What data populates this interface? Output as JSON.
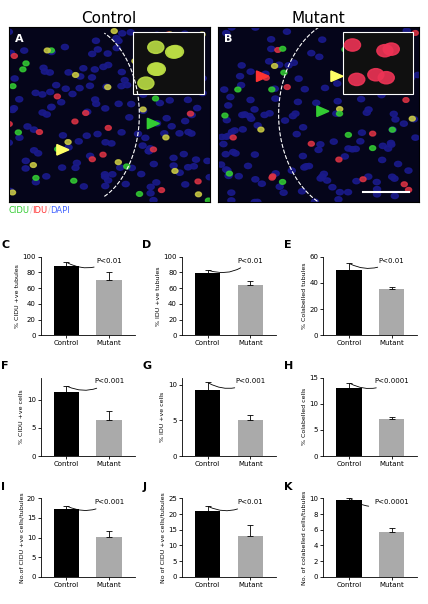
{
  "images": [
    {
      "panel": "A",
      "title": "Control"
    },
    {
      "panel": "B",
      "title": "Mutant"
    }
  ],
  "stain_legend": [
    {
      "text": "CIDU",
      "color": "#33cc33"
    },
    {
      "text": "/",
      "color": "#cccccc"
    },
    {
      "text": "IDU",
      "color": "#ff3333"
    },
    {
      "text": "/",
      "color": "#cccccc"
    },
    {
      "text": "DAPI",
      "color": "#4466ff"
    }
  ],
  "chart_data": [
    {
      "type": "bar",
      "panel": "C",
      "y_label": "% CIDU +ve tubules",
      "categories": [
        "Control",
        "Mutant"
      ],
      "values": [
        88,
        70
      ],
      "errors": [
        5,
        10
      ],
      "colors": [
        "#000000",
        "#aaaaaa"
      ],
      "ylim": [
        0,
        100
      ],
      "yticks": [
        0,
        20,
        40,
        60,
        80,
        100
      ],
      "annotation": "P<0.01"
    },
    {
      "type": "bar",
      "panel": "D",
      "y_label": "% IDU +ve tubules",
      "categories": [
        "Control",
        "Mutant"
      ],
      "values": [
        79,
        64
      ],
      "errors": [
        4,
        5
      ],
      "colors": [
        "#000000",
        "#aaaaaa"
      ],
      "ylim": [
        0,
        100
      ],
      "yticks": [
        0,
        20,
        40,
        60,
        80,
        100
      ],
      "annotation": "P<0.01"
    },
    {
      "type": "bar",
      "panel": "E",
      "y_label": "% Colabelled tubules",
      "categories": [
        "Control",
        "Mutant"
      ],
      "values": [
        50,
        35
      ],
      "errors": [
        5,
        2
      ],
      "colors": [
        "#000000",
        "#aaaaaa"
      ],
      "ylim": [
        0,
        60
      ],
      "yticks": [
        0,
        20,
        40,
        60
      ],
      "annotation": "P<0.01"
    },
    {
      "type": "bar",
      "panel": "F",
      "y_label": "% CIDU +ve cells",
      "categories": [
        "Control",
        "Mutant"
      ],
      "values": [
        11.5,
        6.5
      ],
      "errors": [
        1,
        1.5
      ],
      "colors": [
        "#000000",
        "#aaaaaa"
      ],
      "ylim": [
        0,
        14
      ],
      "yticks": [
        0,
        5,
        10
      ],
      "annotation": "P<0.001"
    },
    {
      "type": "bar",
      "panel": "G",
      "y_label": "% IDU +ve cells",
      "categories": [
        "Control",
        "Mutant"
      ],
      "values": [
        9.3,
        5
      ],
      "errors": [
        1,
        0.8
      ],
      "colors": [
        "#000000",
        "#aaaaaa"
      ],
      "ylim": [
        0,
        11
      ],
      "yticks": [
        0,
        5,
        10
      ],
      "annotation": "P<0.001"
    },
    {
      "type": "bar",
      "panel": "H",
      "y_label": "% Colabelled cells",
      "categories": [
        "Control",
        "Mutant"
      ],
      "values": [
        13,
        7
      ],
      "errors": [
        1,
        0.5
      ],
      "colors": [
        "#000000",
        "#aaaaaa"
      ],
      "ylim": [
        0,
        15
      ],
      "yticks": [
        0,
        5,
        10,
        15
      ],
      "annotation": "P<0.0001"
    },
    {
      "type": "bar",
      "panel": "I",
      "y_label": "No.of CIDU +ve cells/tubules",
      "categories": [
        "Control",
        "Mutant"
      ],
      "values": [
        17.3,
        10.2
      ],
      "errors": [
        0.8,
        1.5
      ],
      "colors": [
        "#000000",
        "#aaaaaa"
      ],
      "ylim": [
        0,
        20
      ],
      "yticks": [
        0,
        5,
        10,
        15,
        20
      ],
      "annotation": "P<0.001"
    },
    {
      "type": "bar",
      "panel": "J",
      "y_label": "No of CIDU +ve cells/tubules",
      "categories": [
        "Control",
        "Mutant"
      ],
      "values": [
        21,
        13
      ],
      "errors": [
        1.5,
        3.5
      ],
      "colors": [
        "#000000",
        "#aaaaaa"
      ],
      "ylim": [
        0,
        25
      ],
      "yticks": [
        0,
        5,
        10,
        15,
        20,
        25
      ],
      "annotation": "P<0.01"
    },
    {
      "type": "bar",
      "panel": "K",
      "y_label": "No. of colabelled cells/tubules",
      "categories": [
        "Control",
        "Mutant"
      ],
      "values": [
        9.8,
        5.7
      ],
      "errors": [
        0.3,
        0.5
      ],
      "colors": [
        "#000000",
        "#aaaaaa"
      ],
      "ylim": [
        0,
        10
      ],
      "yticks": [
        0,
        2,
        4,
        6,
        8,
        10
      ],
      "annotation": "P<0.0001"
    }
  ]
}
